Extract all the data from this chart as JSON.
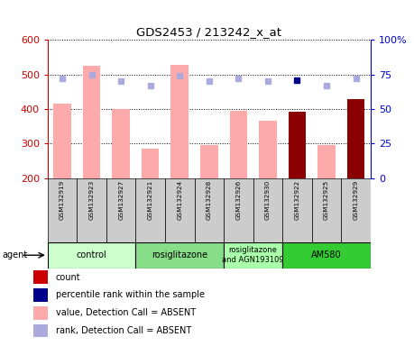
{
  "title": "GDS2453 / 213242_x_at",
  "samples": [
    "GSM132919",
    "GSM132923",
    "GSM132927",
    "GSM132921",
    "GSM132924",
    "GSM132928",
    "GSM132926",
    "GSM132930",
    "GSM132922",
    "GSM132925",
    "GSM132929"
  ],
  "bar_values": [
    415,
    525,
    400,
    285,
    527,
    295,
    395,
    365,
    393,
    295,
    428
  ],
  "bar_colors": [
    "#ffaaaa",
    "#ffaaaa",
    "#ffaaaa",
    "#ffaaaa",
    "#ffaaaa",
    "#ffaaaa",
    "#ffaaaa",
    "#ffaaaa",
    "#8b0000",
    "#ffaaaa",
    "#8b0000"
  ],
  "rank_dots": [
    72,
    75,
    70,
    67,
    74,
    70,
    72,
    70,
    71,
    67,
    72
  ],
  "rank_dot_colors": [
    "#aaaadd",
    "#aaaadd",
    "#aaaadd",
    "#aaaadd",
    "#aaaadd",
    "#aaaadd",
    "#aaaadd",
    "#aaaadd",
    "#00008b",
    "#aaaadd",
    "#aaaadd"
  ],
  "ylim_left": [
    200,
    600
  ],
  "ylim_right": [
    0,
    100
  ],
  "yticks_left": [
    200,
    300,
    400,
    500,
    600
  ],
  "yticks_right": [
    0,
    25,
    50,
    75,
    100
  ],
  "groups": [
    {
      "label": "control",
      "start": 0,
      "end": 2,
      "color": "#ccffcc"
    },
    {
      "label": "rosiglitazone",
      "start": 3,
      "end": 5,
      "color": "#88dd88"
    },
    {
      "label": "rosiglitazone\nand AGN193109",
      "start": 6,
      "end": 7,
      "color": "#aaffaa"
    },
    {
      "label": "AM580",
      "start": 8,
      "end": 10,
      "color": "#33cc33"
    }
  ],
  "legend_items": [
    {
      "color": "#cc0000",
      "label": "count"
    },
    {
      "color": "#00008b",
      "label": "percentile rank within the sample"
    },
    {
      "color": "#ffaaaa",
      "label": "value, Detection Call = ABSENT"
    },
    {
      "color": "#aaaadd",
      "label": "rank, Detection Call = ABSENT"
    }
  ],
  "left_ylabel_color": "#cc0000",
  "right_ylabel_color": "#0000cc",
  "label_bg_color": "#cccccc",
  "agent_label": "agent"
}
